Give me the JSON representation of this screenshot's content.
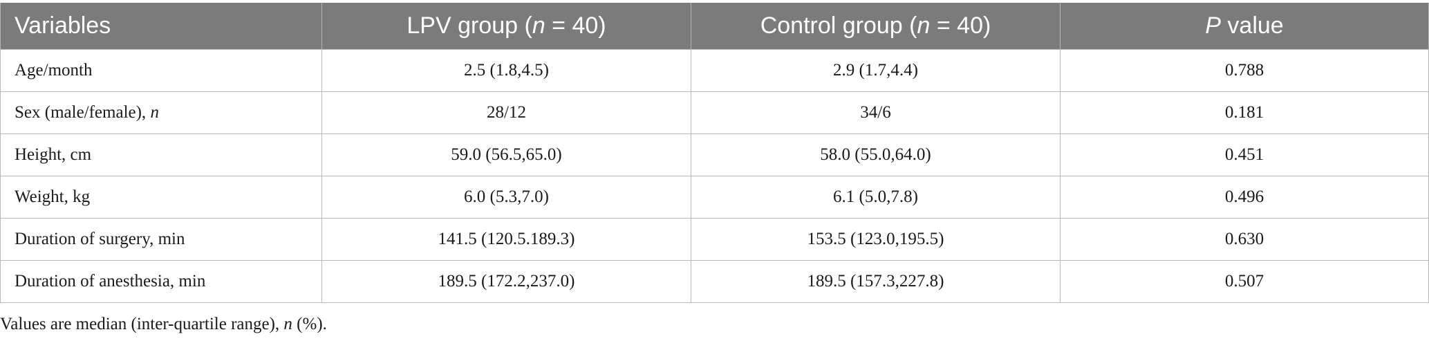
{
  "table": {
    "headers": {
      "variables": "Variables",
      "lpv_prefix": "LPV group (",
      "lpv_n": "n",
      "lpv_suffix": " = 40)",
      "control_prefix": "Control group (",
      "control_n": "n",
      "control_suffix": " = 40)",
      "p_italic": "P",
      "p_suffix": " value"
    },
    "rows": [
      {
        "variable": "Age/month",
        "variable_italic": "",
        "lpv": "2.5 (1.8,4.5)",
        "control": "2.9 (1.7,4.4)",
        "p": "0.788"
      },
      {
        "variable": "Sex (male/female), ",
        "variable_italic": "n",
        "lpv": "28/12",
        "control": "34/6",
        "p": "0.181"
      },
      {
        "variable": "Height, cm",
        "variable_italic": "",
        "lpv": "59.0 (56.5,65.0)",
        "control": "58.0 (55.0,64.0)",
        "p": "0.451"
      },
      {
        "variable": "Weight, kg",
        "variable_italic": "",
        "lpv": "6.0 (5.3,7.0)",
        "control": "6.1 (5.0,7.8)",
        "p": "0.496"
      },
      {
        "variable": "Duration of surgery, min",
        "variable_italic": "",
        "lpv": "141.5 (120.5.189.3)",
        "control": "153.5 (123.0,195.5)",
        "p": "0.630"
      },
      {
        "variable": "Duration of anesthesia, min",
        "variable_italic": "",
        "lpv": "189.5 (172.2,237.0)",
        "control": "189.5 (157.3,227.8)",
        "p": "0.507"
      }
    ]
  },
  "footnote": {
    "before": "Values are median (inter-quartile range), ",
    "italic": "n",
    "after": " (%)."
  }
}
